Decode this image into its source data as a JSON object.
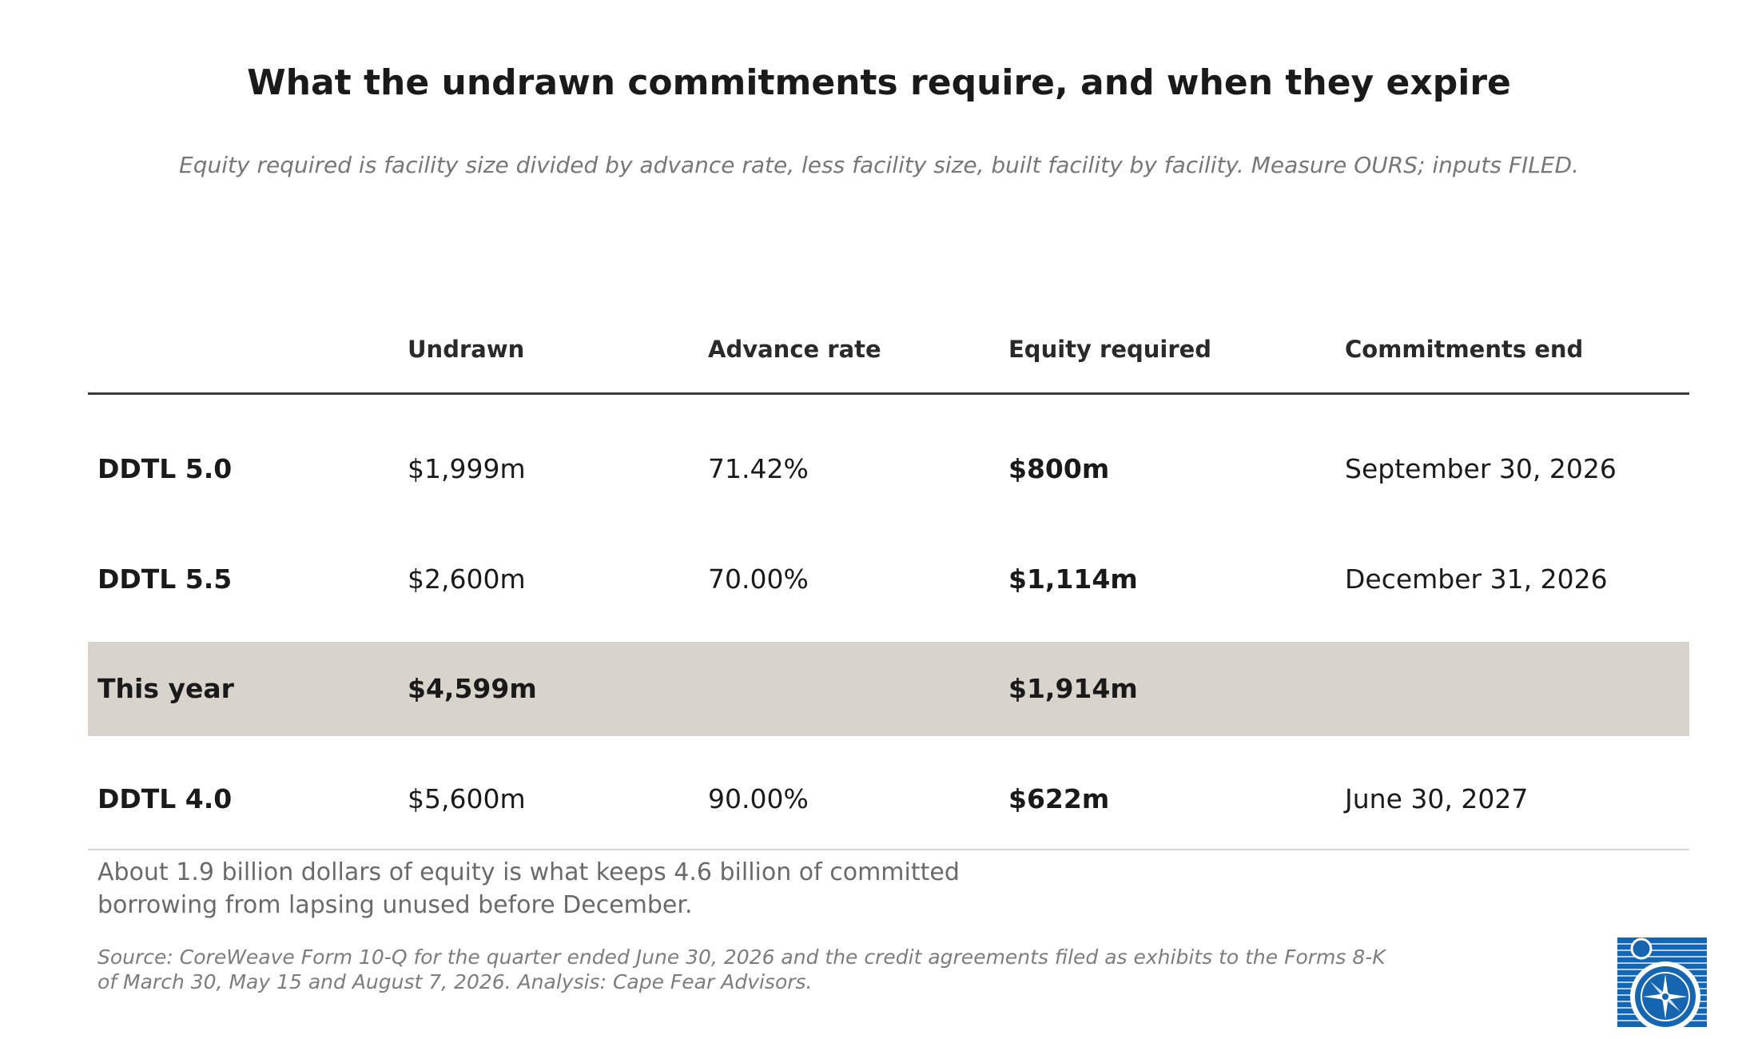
{
  "header": {
    "title": "What the undrawn commitments require, and when they expire",
    "subtitle": "Equity required is facility size divided by advance rate, less facility size, built facility by facility. Measure OURS; inputs FILED."
  },
  "chart_data": {
    "type": "table",
    "columns": [
      "",
      "Undrawn",
      "Advance rate",
      "Equity required",
      "Commitments end"
    ],
    "rows": [
      {
        "label": "DDTL 5.0",
        "undrawn": "$1,999m",
        "advance_rate": "71.42%",
        "equity_required": "$800m",
        "commitments_end": "September 30, 2026",
        "highlight": false
      },
      {
        "label": "DDTL 5.5",
        "undrawn": "$2,600m",
        "advance_rate": "70.00%",
        "equity_required": "$1,114m",
        "commitments_end": "December 31, 2026",
        "highlight": false
      },
      {
        "label": "This year",
        "undrawn": "$4,599m",
        "advance_rate": "",
        "equity_required": "$1,914m",
        "commitments_end": "",
        "highlight": true
      },
      {
        "label": "DDTL 4.0",
        "undrawn": "$5,600m",
        "advance_rate": "90.00%",
        "equity_required": "$622m",
        "commitments_end": "June 30, 2027",
        "highlight": false
      }
    ]
  },
  "footer": {
    "note_line1": "About 1.9 billion dollars of equity is what keeps 4.6 billion of committed",
    "note_line2": "borrowing from lapsing unused before December.",
    "source_line1": "Source: CoreWeave Form 10-Q for the quarter ended June 30, 2026 and the credit agreements filed as exhibits to the Forms 8-K",
    "source_line2": "of March 30, May 15 and August 7, 2026. Analysis: Cape Fear Advisors."
  },
  "colors": {
    "highlight_row": "#d8d4cc",
    "logo_blue": "#1565b0"
  },
  "logo": {
    "icon": "compass-logo-icon"
  }
}
